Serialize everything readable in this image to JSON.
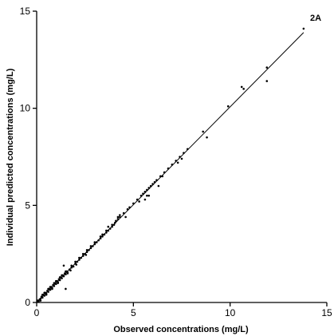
{
  "chart_data": {
    "type": "scatter",
    "title": "",
    "panel_label": "2A",
    "xlabel": "Observed concentrations (mg/L)",
    "ylabel": "Individual predicted concentrations (mg/L)",
    "xlim": [
      0,
      15
    ],
    "ylim": [
      0,
      15
    ],
    "xticks": [
      0,
      5,
      10,
      15
    ],
    "yticks": [
      0,
      5,
      10,
      15
    ],
    "grid": false,
    "series": [
      {
        "type": "points",
        "x": [
          0.05,
          0.1,
          0.15,
          0.2,
          0.25,
          0.3,
          0.35,
          0.4,
          0.45,
          0.5,
          0.55,
          0.6,
          0.65,
          0.7,
          0.75,
          0.8,
          0.85,
          0.9,
          0.95,
          1.0,
          1.05,
          1.1,
          1.15,
          1.2,
          1.25,
          1.3,
          1.35,
          1.4,
          1.45,
          1.5,
          1.55,
          1.6,
          1.7,
          1.75,
          1.8,
          1.9,
          2.0,
          2.05,
          2.1,
          2.2,
          2.3,
          2.4,
          2.5,
          2.55,
          2.6,
          2.7,
          2.8,
          2.9,
          3.0,
          3.1,
          3.2,
          3.3,
          3.4,
          3.5,
          3.6,
          3.7,
          3.8,
          3.9,
          4.0,
          4.05,
          4.1,
          4.2,
          4.3,
          4.5,
          4.7,
          4.8,
          5.0,
          5.2,
          5.4,
          5.5,
          5.6,
          5.7,
          5.8,
          5.9,
          6.0,
          6.2,
          6.4,
          6.6,
          6.8,
          7.0,
          7.2,
          7.4,
          7.6,
          7.8,
          0.3,
          0.6,
          0.9,
          1.2,
          1.5,
          1.8,
          2.2,
          2.6,
          3.0,
          3.4,
          3.9,
          4.3,
          0.2,
          0.5,
          0.8,
          1.1,
          1.6,
          2.0,
          2.4,
          2.8,
          3.3,
          3.7,
          4.1,
          5.7,
          6.5,
          6.1,
          5.6,
          8.6,
          8.8,
          9.9,
          10.6,
          10.7,
          11.9,
          11.9,
          13.8,
          1.4,
          1.5,
          0.4,
          0.7,
          1.0,
          1.3,
          3.6,
          4.2,
          4.6,
          5.3,
          5.8,
          6.3,
          7.3,
          7.5
        ],
        "y": [
          0.1,
          0.05,
          0.15,
          0.2,
          0.3,
          0.25,
          0.4,
          0.35,
          0.5,
          0.45,
          0.6,
          0.55,
          0.7,
          0.65,
          0.8,
          0.75,
          0.9,
          0.85,
          1.0,
          0.95,
          1.1,
          1.05,
          1.2,
          1.15,
          1.3,
          1.25,
          1.4,
          1.35,
          1.5,
          1.45,
          1.6,
          1.55,
          1.7,
          1.65,
          1.8,
          1.85,
          2.0,
          1.95,
          2.1,
          2.2,
          2.3,
          2.4,
          2.5,
          2.45,
          2.6,
          2.7,
          2.8,
          2.9,
          3.0,
          3.1,
          3.2,
          3.3,
          3.4,
          3.5,
          3.6,
          3.7,
          3.8,
          3.9,
          4.0,
          4.1,
          4.2,
          4.3,
          4.4,
          4.6,
          4.8,
          4.9,
          5.1,
          5.3,
          5.5,
          5.6,
          5.7,
          5.8,
          5.9,
          6.0,
          6.1,
          6.3,
          6.5,
          6.7,
          6.9,
          7.1,
          7.3,
          7.5,
          7.7,
          7.9,
          0.4,
          0.7,
          1.0,
          1.3,
          1.6,
          1.9,
          2.3,
          2.7,
          3.1,
          3.5,
          4.0,
          4.5,
          0.1,
          0.4,
          0.7,
          1.0,
          1.5,
          2.1,
          2.5,
          2.9,
          3.4,
          3.9,
          4.2,
          5.5,
          6.5,
          6.2,
          5.3,
          8.8,
          8.5,
          10.1,
          11.1,
          11.0,
          12.1,
          11.4,
          14.1,
          1.9,
          0.7,
          0.5,
          0.8,
          1.1,
          1.4,
          3.7,
          4.4,
          4.4,
          5.2,
          5.5,
          6.0,
          7.2,
          7.4
        ]
      },
      {
        "type": "line",
        "x": [
          0,
          13.8
        ],
        "y": [
          0,
          13.9
        ]
      }
    ]
  }
}
